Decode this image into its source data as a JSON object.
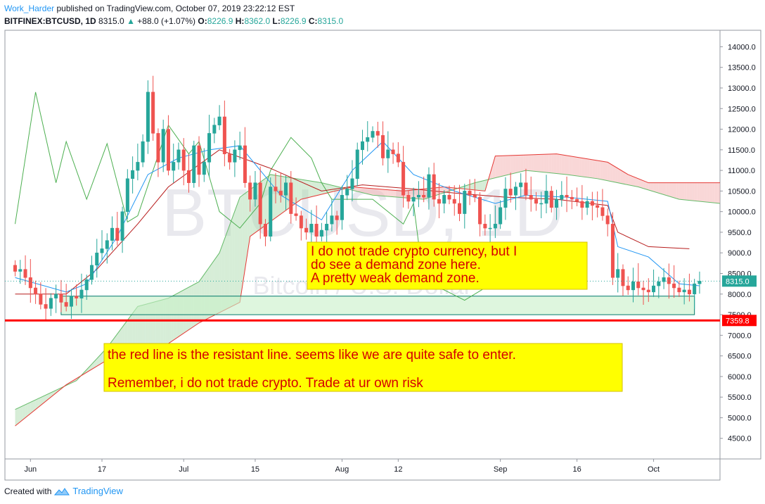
{
  "header": {
    "user": "Work_Harder",
    "published": "published on TradingView.com, October 07, 2019 23:22:12 EST",
    "symbol": "BITFINEX:BTCUSD, 1D",
    "last": "8315.0",
    "change": "+88.0 (+1.07%)",
    "o_label": "O:",
    "o": "8226.9",
    "h_label": "H:",
    "h": "8362.0",
    "l_label": "L:",
    "l": "8226.9",
    "c_label": "C:",
    "c": "8315.0"
  },
  "footer": {
    "created_with": "Created with",
    "brand": "TradingView"
  },
  "watermark": {
    "big": "BTCUSD, 1D",
    "small": "Bitcoin / U.S. Dollar"
  },
  "annotations": {
    "demand_note": [
      "I do not trade crypto currency, but I",
      "do see a demand zone here.",
      "A pretty weak demand zone."
    ],
    "red_line_note": [
      "the red line is the resistant line. seems like we are quite safe to enter.",
      "Remember, i do not trade crypto. Trade at ur own risk"
    ]
  },
  "price_tags": {
    "current": "8315.0",
    "red_line": "7359.8"
  },
  "colors": {
    "up": "#26a69a",
    "down": "#ef5350",
    "note_bg": "#ffff00",
    "note_text": "#d50000",
    "red_line": "#ff0000",
    "zone_fill": "#c8f0c8",
    "cloud_green": "#a5d6a7",
    "cloud_red": "#f4b6b6",
    "tenkan": "#2196f3",
    "kijun": "#b71c1c",
    "chikou": "#4caf50",
    "span_a": "#66bb6a",
    "span_b": "#e53935"
  },
  "chart_data": {
    "type": "candlestick",
    "title": "BITFINEX:BTCUSD, 1D",
    "y_range": [
      4000,
      14400
    ],
    "y_ticks": [
      4500,
      5000,
      5500,
      6000,
      6500,
      7000,
      7500,
      8000,
      8500,
      9000,
      9500,
      10000,
      10500,
      11000,
      11500,
      12000,
      12500,
      13000,
      13500,
      14000
    ],
    "x_labels": [
      {
        "label": "Jun",
        "day": 3
      },
      {
        "label": "17",
        "day": 17
      },
      {
        "label": "Jul",
        "day": 33
      },
      {
        "label": "15",
        "day": 47
      },
      {
        "label": "Aug",
        "day": 64
      },
      {
        "label": "12",
        "day": 75
      },
      {
        "label": "Sep",
        "day": 95
      },
      {
        "label": "16",
        "day": 110
      },
      {
        "label": "Oct",
        "day": 125
      }
    ],
    "x_range": [
      -2,
      138
    ],
    "candles_note": "one candle per day; day 0 = May 31 2019",
    "closes": [
      8550,
      8600,
      8400,
      8150,
      8000,
      7750,
      7650,
      7900,
      8000,
      7800,
      7700,
      7950,
      7900,
      8100,
      8350,
      8700,
      9000,
      9100,
      9300,
      9600,
      9300,
      10000,
      10800,
      11000,
      11200,
      11700,
      12900,
      11900,
      11200,
      12000,
      11000,
      11200,
      11500,
      11000,
      10700,
      11600,
      10900,
      11200,
      11900,
      12100,
      12300,
      11400,
      11200,
      11500,
      11600,
      10700,
      10300,
      10700,
      9700,
      9400,
      10600,
      10500,
      10400,
      10700,
      9950,
      9900,
      9600,
      9500,
      9700,
      9400,
      9550,
      9700,
      9900,
      9800,
      10400,
      10550,
      10800,
      11500,
      11700,
      11800,
      11950,
      11850,
      11300,
      11500,
      11400,
      11200,
      10400,
      10250,
      10350,
      10400,
      10350,
      10900,
      10300,
      10200,
      10400,
      10300,
      10200,
      9950,
      10500,
      10400,
      10350,
      9700,
      9600,
      9600,
      9700,
      10100,
      10550,
      10400,
      10600,
      10700,
      10400,
      10300,
      10200,
      10200,
      10500,
      10100,
      10300,
      10400,
      10350,
      10300,
      10250,
      10100,
      10250,
      10150,
      10100,
      9900,
      9700,
      8400,
      8600,
      8200,
      8100,
      8300,
      8150,
      8100,
      8050,
      8200,
      8300,
      8400,
      8250,
      8150,
      8050,
      8100,
      8000,
      8250,
      8315
    ],
    "tenkan": [
      [
        0,
        8400
      ],
      [
        10,
        8050
      ],
      [
        14,
        8250
      ],
      [
        20,
        9400
      ],
      [
        26,
        10900
      ],
      [
        32,
        11300
      ],
      [
        38,
        11500
      ],
      [
        44,
        11600
      ],
      [
        52,
        10400
      ],
      [
        60,
        9800
      ],
      [
        66,
        11000
      ],
      [
        72,
        11700
      ],
      [
        78,
        10900
      ],
      [
        86,
        10500
      ],
      [
        94,
        10200
      ],
      [
        100,
        10400
      ],
      [
        108,
        10350
      ],
      [
        116,
        10250
      ],
      [
        118,
        9150
      ],
      [
        124,
        8900
      ],
      [
        130,
        8250
      ],
      [
        134,
        8200
      ]
    ],
    "kijun": [
      [
        0,
        8000
      ],
      [
        10,
        8000
      ],
      [
        16,
        8600
      ],
      [
        24,
        9700
      ],
      [
        30,
        10600
      ],
      [
        40,
        11500
      ],
      [
        50,
        11050
      ],
      [
        60,
        10500
      ],
      [
        68,
        10650
      ],
      [
        78,
        10550
      ],
      [
        86,
        10450
      ],
      [
        96,
        10350
      ],
      [
        106,
        10300
      ],
      [
        116,
        10150
      ],
      [
        118,
        9500
      ],
      [
        124,
        9150
      ],
      [
        132,
        9100
      ]
    ],
    "span_a": [
      [
        0,
        5200
      ],
      [
        12,
        5900
      ],
      [
        18,
        6700
      ],
      [
        24,
        7700
      ],
      [
        30,
        7900
      ],
      [
        36,
        8300
      ],
      [
        40,
        9000
      ],
      [
        44,
        10350
      ],
      [
        50,
        10900
      ],
      [
        60,
        10700
      ],
      [
        70,
        10400
      ],
      [
        80,
        10300
      ],
      [
        90,
        10700
      ],
      [
        100,
        11000
      ],
      [
        108,
        10900
      ],
      [
        114,
        10800
      ],
      [
        122,
        10600
      ],
      [
        130,
        10300
      ],
      [
        138,
        10200
      ]
    ],
    "span_b": [
      [
        0,
        4800
      ],
      [
        10,
        5800
      ],
      [
        18,
        6400
      ],
      [
        30,
        6800
      ],
      [
        36,
        7300
      ],
      [
        44,
        7800
      ],
      [
        46,
        9400
      ],
      [
        56,
        10300
      ],
      [
        66,
        10600
      ],
      [
        76,
        10500
      ],
      [
        84,
        10600
      ],
      [
        92,
        10500
      ],
      [
        94,
        11350
      ],
      [
        106,
        11400
      ],
      [
        116,
        11200
      ],
      [
        120,
        10900
      ],
      [
        124,
        10700
      ],
      [
        138,
        10700
      ]
    ],
    "chikou": [
      [
        0,
        9700
      ],
      [
        4,
        12900
      ],
      [
        8,
        10700
      ],
      [
        10,
        11700
      ],
      [
        14,
        10300
      ],
      [
        18,
        11650
      ],
      [
        22,
        9750
      ],
      [
        24,
        9900
      ],
      [
        30,
        12100
      ],
      [
        34,
        11400
      ],
      [
        36,
        11700
      ],
      [
        40,
        10000
      ],
      [
        44,
        9600
      ],
      [
        48,
        10200
      ],
      [
        50,
        11000
      ],
      [
        54,
        11800
      ],
      [
        58,
        11300
      ],
      [
        60,
        10700
      ],
      [
        62,
        10300
      ],
      [
        70,
        10300
      ],
      [
        76,
        9700
      ],
      [
        78,
        10200
      ],
      [
        80,
        8250
      ],
      [
        84,
        8100
      ],
      [
        88,
        7850
      ],
      [
        92,
        8150
      ]
    ],
    "demand_zone": {
      "from_day": 9,
      "to_day": 133,
      "low": 7500,
      "high": 7950
    },
    "resistance_line": 7359.8,
    "last_price": 8315.0
  }
}
